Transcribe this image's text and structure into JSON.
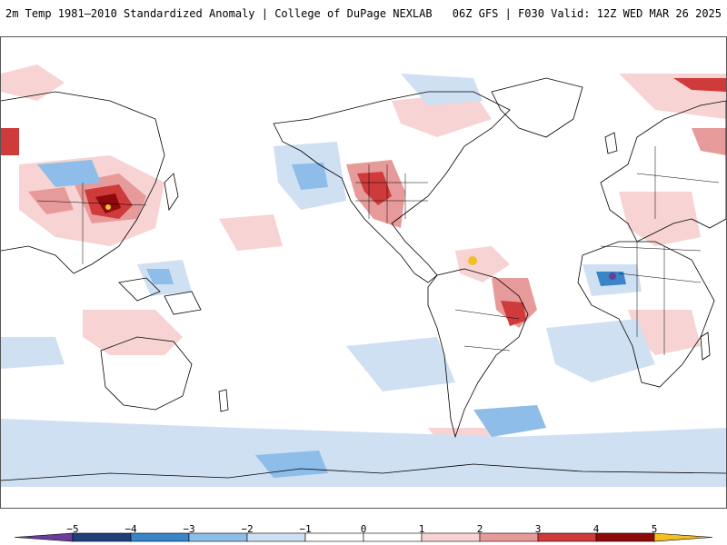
{
  "header": {
    "left_title": "2m Temp 1981–2010 Standardized Anomaly | College of DuPage NEXLAB",
    "right_title": "06Z GFS | F030 Valid: 12Z WED MAR 26 2025"
  },
  "colorbar": {
    "ticks": [
      "−5",
      "−4",
      "−3",
      "−2",
      "−1",
      "0",
      "1",
      "2",
      "3",
      "4",
      "5"
    ],
    "tick_values": [
      -5,
      -4,
      -3,
      -2,
      -1,
      0,
      1,
      2,
      3,
      4,
      5
    ],
    "range": [
      -6,
      6
    ],
    "bins": [
      {
        "from": -6,
        "to": -5,
        "color": "#6a3d9a"
      },
      {
        "from": -5,
        "to": -4,
        "color": "#1f3f7a"
      },
      {
        "from": -4,
        "to": -3,
        "color": "#3a84c8"
      },
      {
        "from": -3,
        "to": -2,
        "color": "#8dbde8"
      },
      {
        "from": -2,
        "to": -1,
        "color": "#cfe0f3"
      },
      {
        "from": -1,
        "to": 0,
        "color": "#ffffff"
      },
      {
        "from": 0,
        "to": 1,
        "color": "#ffffff"
      },
      {
        "from": 1,
        "to": 2,
        "color": "#f7d3d3"
      },
      {
        "from": 2,
        "to": 3,
        "color": "#e79a9a"
      },
      {
        "from": 3,
        "to": 4,
        "color": "#cf3a3a"
      },
      {
        "from": 4,
        "to": 5,
        "color": "#8e0a0a"
      },
      {
        "from": 5,
        "to": 6,
        "color": "#f2c022"
      }
    ]
  },
  "map": {
    "ocean_color": "#ffffff",
    "coast_color": "#000000",
    "projection": "equirectangular, centered on the Pacific"
  }
}
